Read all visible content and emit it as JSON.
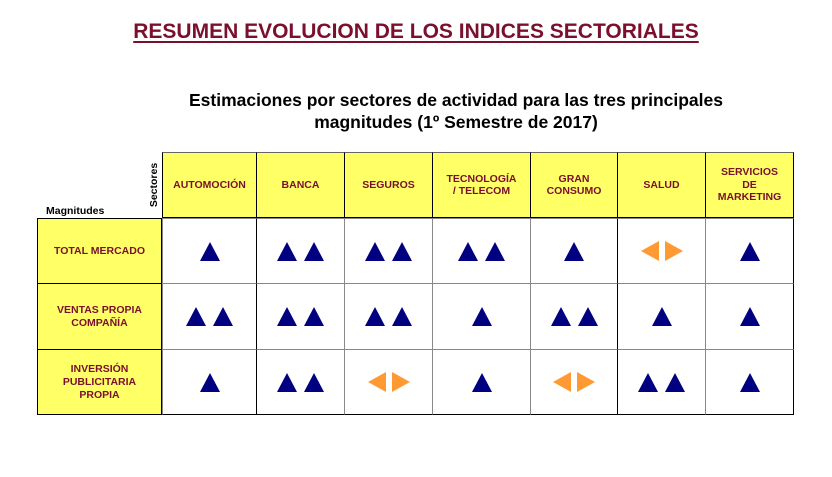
{
  "title": "RESUMEN EVOLUCION DE LOS INDICES SECTORIALES",
  "subtitle_line1": "Estimaciones por sectores de actividad para las tres principales",
  "subtitle_line2": "magnitudes (1º Semestre de 2017)",
  "axis_labels": {
    "sectores": "Sectores",
    "magnitudes": "Magnitudes"
  },
  "colors": {
    "title": "#7a0f2e",
    "header_bg": "#ffff66",
    "up_arrow": "#000080",
    "stable_arrow": "#ff9933"
  },
  "legend_symbols": {
    "up1": "one up triangle",
    "up2": "two up triangles",
    "stable": "left-right orange arrows"
  },
  "columns": [
    {
      "label": "AUTOMOCIÓN"
    },
    {
      "label": "BANCA"
    },
    {
      "label": "SEGUROS"
    },
    {
      "label": "TECNOLOGÍA / TELECOM"
    },
    {
      "label": "GRAN CONSUMO"
    },
    {
      "label": "SALUD"
    },
    {
      "label": "SERVICIOS DE MARKETING"
    }
  ],
  "rows": [
    {
      "label": "TOTAL MERCADO",
      "values": [
        "up1",
        "up2",
        "up2",
        "up2",
        "up1",
        "stable",
        "up1"
      ]
    },
    {
      "label": "VENTAS PROPIA COMPAÑÍA",
      "values": [
        "up2",
        "up2",
        "up2",
        "up1",
        "up2",
        "up1",
        "up1"
      ]
    },
    {
      "label": "INVERSIÓN PUBLICITARIA PROPIA",
      "values": [
        "up1",
        "up2",
        "stable",
        "up1",
        "stable",
        "up2",
        "up1"
      ]
    }
  ]
}
